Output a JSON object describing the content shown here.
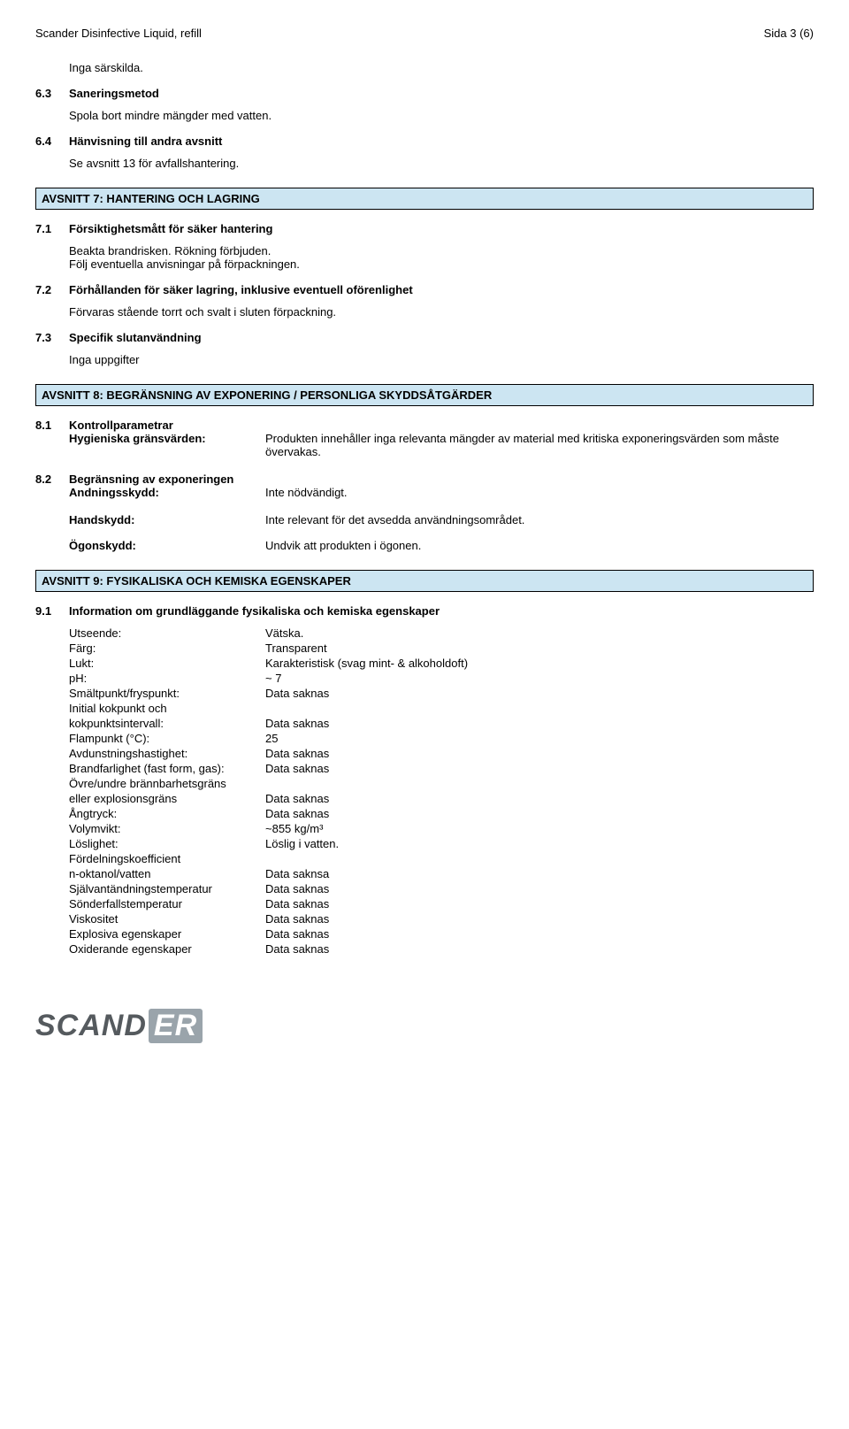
{
  "header": {
    "left": "Scander Disinfective Liquid, refill",
    "right": "Sida 3 (6)"
  },
  "pre": {
    "indent_text": "Inga särskilda.",
    "s63_num": "6.3",
    "s63_title": "Saneringsmetod",
    "s63_body": "Spola bort mindre mängder med vatten.",
    "s64_num": "6.4",
    "s64_title": "Hänvisning till andra avsnitt",
    "s64_body": "Se avsnitt 13 för avfallshantering."
  },
  "section7": {
    "bar": "AVSNITT 7: HANTERING OCH LAGRING",
    "s71_num": "7.1",
    "s71_title": "Försiktighetsmått för säker hantering",
    "s71_body_l1": "Beakta brandrisken. Rökning förbjuden.",
    "s71_body_l2": "Följ eventuella anvisningar på förpackningen.",
    "s72_num": "7.2",
    "s72_title": "Förhållanden för säker lagring, inklusive eventuell oförenlighet",
    "s72_body": "Förvaras stående torrt och svalt i sluten förpackning.",
    "s73_num": "7.3",
    "s73_title": "Specifik slutanvändning",
    "s73_body": "Inga uppgifter"
  },
  "section8": {
    "bar": "AVSNITT 8: BEGRÄNSNING AV EXPONERING / PERSONLIGA SKYDDSÅTGÄRDER",
    "s81_num": "8.1",
    "s81_title": "Kontrollparametrar",
    "s81_k": "Hygieniska gränsvärden:",
    "s81_v": "Produkten innehåller inga relevanta mängder av material med kritiska exponeringsvärden som måste övervakas.",
    "s82_num": "8.2",
    "s82_title": "Begränsning av exponeringen",
    "s82_k": "Andningsskydd:",
    "s82_v": "Inte nödvändigt.",
    "hand_k": "Handskydd:",
    "hand_v": "Inte relevant för det avsedda användningsområdet.",
    "eye_k": "Ögonskydd:",
    "eye_v": "Undvik att produkten i ögonen."
  },
  "section9": {
    "bar": "AVSNITT 9: FYSIKALISKA OCH KEMISKA EGENSKAPER",
    "s91_num": "9.1",
    "s91_title": "Information om grundläggande fysikaliska och kemiska egenskaper",
    "rows": [
      {
        "k": "Utseende:",
        "v": "Vätska."
      },
      {
        "k": "Färg:",
        "v": "Transparent"
      },
      {
        "k": "Lukt:",
        "v": "Karakteristisk (svag mint- & alkoholdoft)"
      },
      {
        "k": "pH:",
        "v": "~ 7"
      },
      {
        "k": "Smältpunkt/fryspunkt:",
        "v": "Data saknas"
      },
      {
        "k": "Initial kokpunkt och",
        "v": ""
      },
      {
        "k": "kokpunktsintervall:",
        "v": "Data saknas"
      },
      {
        "k": "Flampunkt (°C):",
        "v": "25"
      },
      {
        "k": "Avdunstningshastighet:",
        "v": "Data saknas"
      },
      {
        "k": "Brandfarlighet (fast form, gas):",
        "v": "Data saknas"
      },
      {
        "k": "Övre/undre brännbarhetsgräns",
        "v": ""
      },
      {
        "k": "eller explosionsgräns",
        "v": "Data saknas"
      },
      {
        "k": "Ångtryck:",
        "v": "Data saknas"
      },
      {
        "k": "Volymvikt:",
        "v": "~855 kg/m³"
      },
      {
        "k": "Löslighet:",
        "v": "Löslig i vatten."
      },
      {
        "k": "Fördelningskoefficient",
        "v": ""
      },
      {
        "k": "n-oktanol/vatten",
        "v": "Data saknsa"
      },
      {
        "k": "Självantändningstemperatur",
        "v": "Data saknas"
      },
      {
        "k": "Sönderfallstemperatur",
        "v": "Data saknas"
      },
      {
        "k": "Viskositet",
        "v": "Data saknas"
      },
      {
        "k": "Explosiva egenskaper",
        "v": "Data saknas"
      },
      {
        "k": "Oxiderande egenskaper",
        "v": "Data saknas"
      }
    ]
  },
  "logo": {
    "part1": "SCAND",
    "part2": "ER"
  }
}
